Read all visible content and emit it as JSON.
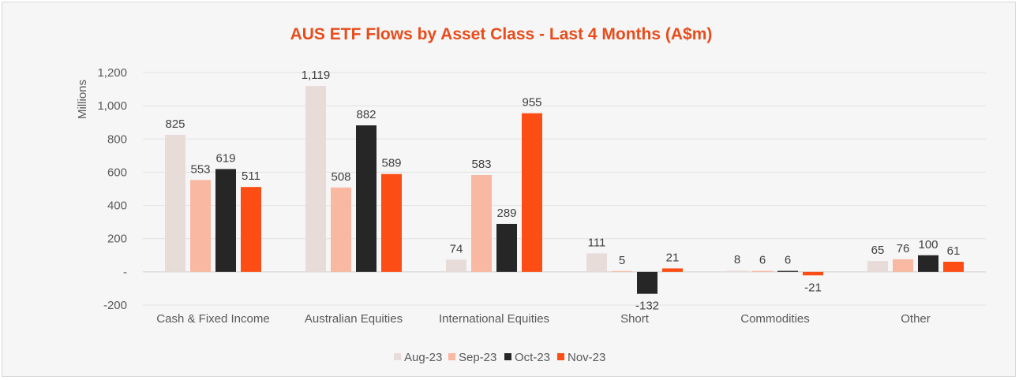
{
  "chart_data": {
    "type": "bar",
    "title": "AUS ETF Flows by Asset Class - Last 4 Months (A$m)",
    "ylabel": "Millions",
    "xlabel": "",
    "categories": [
      "Cash & Fixed Income",
      "Australian Equities",
      "International Equities",
      "Short",
      "Commodities",
      "Other"
    ],
    "series": [
      {
        "name": "Aug-23",
        "color": "#e8dcd9",
        "values": [
          825,
          1119,
          74,
          111,
          8,
          65
        ],
        "labels": [
          "825",
          "1,119",
          "74",
          "111",
          "8",
          "65"
        ]
      },
      {
        "name": "Sep-23",
        "color": "#f9b8a2",
        "values": [
          553,
          508,
          583,
          5,
          6,
          76
        ],
        "labels": [
          "553",
          "508",
          "583",
          "5",
          "6",
          "76"
        ]
      },
      {
        "name": "Oct-23",
        "color": "#262626",
        "values": [
          619,
          882,
          289,
          -132,
          6,
          100
        ],
        "labels": [
          "619",
          "882",
          "289",
          "-132",
          "6",
          "100"
        ]
      },
      {
        "name": "Nov-23",
        "color": "#fc4e14",
        "values": [
          511,
          589,
          955,
          21,
          -21,
          61
        ],
        "labels": [
          "511",
          "589",
          "955",
          "21",
          "-21",
          "61"
        ]
      }
    ],
    "ylim": [
      -200,
      1200
    ],
    "yticks": [
      -200,
      0,
      200,
      400,
      600,
      800,
      1000,
      1200
    ],
    "ytick_labels": [
      "-200",
      "-",
      "200",
      "400",
      "600",
      "800",
      "1,000",
      "1,200"
    ],
    "grid": true,
    "legend_position": "bottom",
    "title_color": "#e84c1b"
  }
}
